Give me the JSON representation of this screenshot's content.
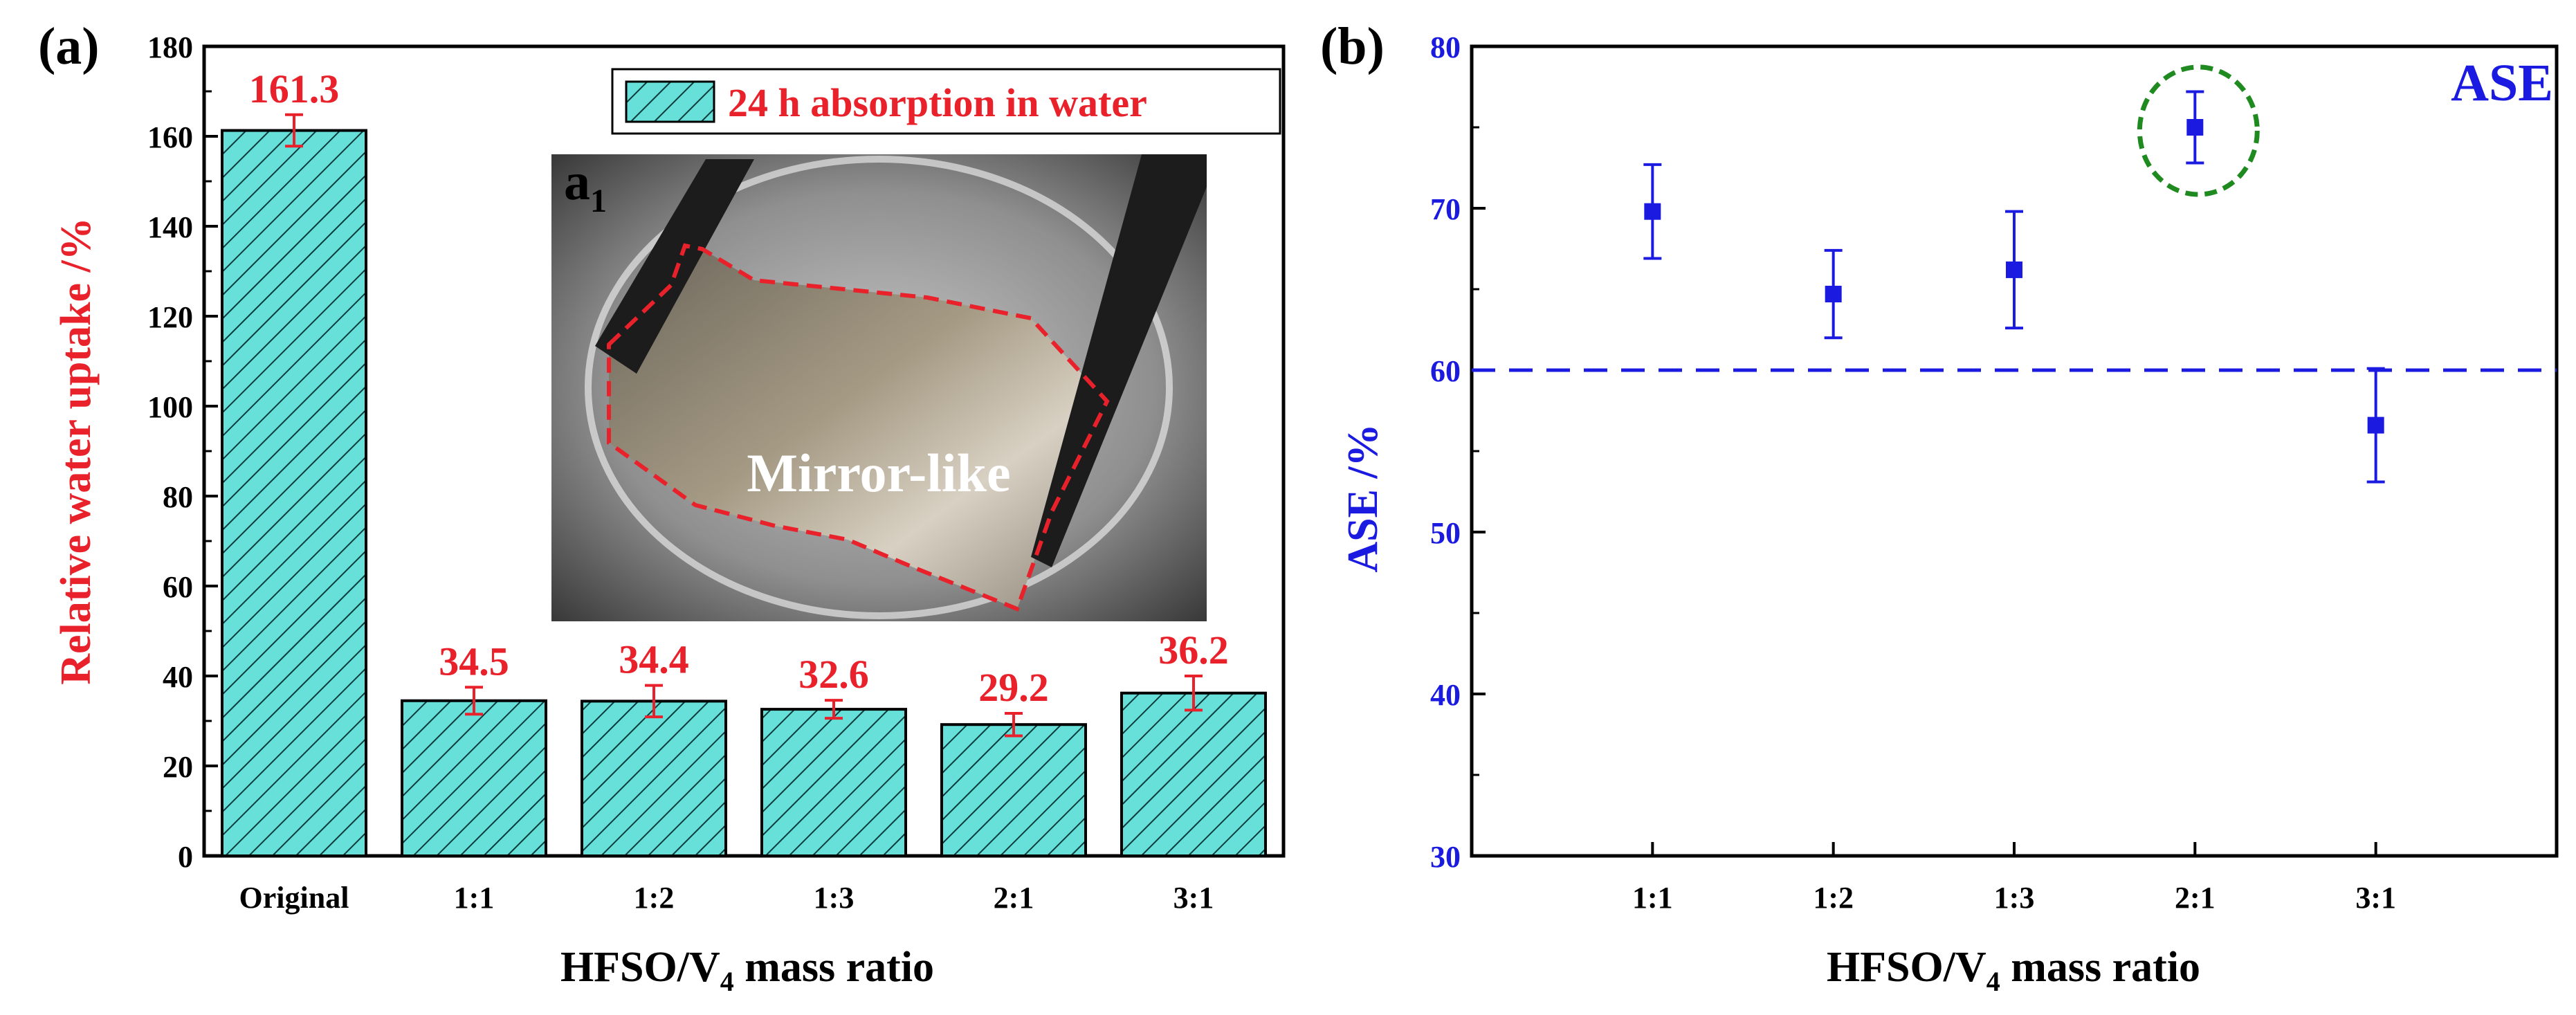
{
  "panel_a": {
    "label": "(a)",
    "legend": "24 h absorption in water",
    "inset": {
      "label_main": "a",
      "label_sub": "1",
      "caption": "Mirror-like"
    }
  },
  "panel_b": {
    "label": "(b)",
    "legend": "ASE"
  },
  "colors": {
    "bar_fill": "#66e0d9",
    "value_red": "#e8212b",
    "ase_blue": "#1a1ae0",
    "highlight_green": "#1f8a1f"
  },
  "chart_data": [
    {
      "type": "bar",
      "title": "",
      "categories": [
        "Original",
        "1:1",
        "1:2",
        "1:3",
        "2:1",
        "3:1"
      ],
      "values": [
        161.3,
        34.5,
        34.4,
        32.6,
        29.2,
        36.2
      ],
      "value_labels": [
        "161.3",
        "34.5",
        "34.4",
        "32.6",
        "29.2",
        "36.2"
      ],
      "errors": [
        3.5,
        3.0,
        3.5,
        2.0,
        2.5,
        3.8
      ],
      "xlabel_main": "HFSO/V",
      "xlabel_sub": "4",
      "xlabel_tail": " mass ratio",
      "ylabel": "Relative water uptake /%",
      "ylim": [
        0,
        180
      ],
      "yticks": [
        0,
        20,
        40,
        60,
        80,
        100,
        120,
        140,
        160,
        180
      ],
      "ytick_labels": [
        "0",
        "20",
        "40",
        "60",
        "80",
        "100",
        "120",
        "140",
        "160",
        "180"
      ],
      "legend": "24 h absorption in water"
    },
    {
      "type": "scatter",
      "title": "",
      "categories": [
        "1:1",
        "1:2",
        "1:3",
        "2:1",
        "3:1"
      ],
      "values": [
        69.8,
        64.7,
        66.2,
        75.0,
        56.6
      ],
      "errors": [
        2.9,
        2.7,
        3.6,
        2.2,
        3.5
      ],
      "reference_line": 60,
      "highlighted_category": "2:1",
      "xlabel_main": "HFSO/V",
      "xlabel_sub": "4",
      "xlabel_tail": " mass ratio",
      "ylabel": "ASE /%",
      "ylim": [
        30,
        80
      ],
      "yticks": [
        30,
        40,
        50,
        60,
        70,
        80
      ],
      "ytick_labels": [
        "30",
        "40",
        "50",
        "60",
        "70",
        "80"
      ],
      "legend": "ASE"
    }
  ]
}
